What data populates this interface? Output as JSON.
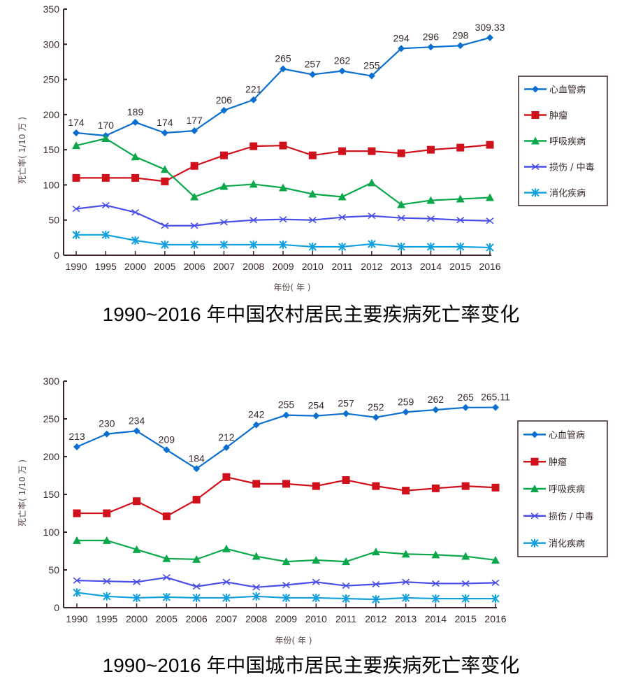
{
  "chart_data": [
    {
      "type": "line",
      "title": "1990~2016 年中国农村居民主要疾病死亡率变化",
      "xlabel": "年份( 年 )",
      "ylabel": "死亡率( 1/10 万 )",
      "ylim": [
        0,
        350
      ],
      "yticks": [
        0,
        50,
        100,
        150,
        200,
        250,
        300,
        350
      ],
      "grid": false,
      "legend_position": "right",
      "categories": [
        "1990",
        "1995",
        "2000",
        "2005",
        "2006",
        "2007",
        "2008",
        "2009",
        "2010",
        "2011",
        "2012",
        "2013",
        "2014",
        "2015",
        "2016"
      ],
      "series": [
        {
          "name": "心血管病",
          "color": "#0a6fd0",
          "marker": "diamond",
          "values": [
            174,
            170,
            189,
            174,
            177,
            206,
            221,
            265,
            257,
            262,
            255,
            294,
            296,
            298,
            309.33
          ],
          "labels": [
            "174",
            "170",
            "189",
            "174",
            "177",
            "206",
            "221",
            "265",
            "257",
            "262",
            "255",
            "294",
            "296",
            "298",
            "309.33"
          ]
        },
        {
          "name": "肿瘤",
          "color": "#d0101a",
          "marker": "square",
          "values": [
            110,
            110,
            110,
            105,
            127,
            142,
            155,
            156,
            142,
            148,
            148,
            145,
            150,
            153,
            157
          ]
        },
        {
          "name": "呼吸疾病",
          "color": "#0aa84a",
          "marker": "triangle",
          "values": [
            156,
            166,
            140,
            122,
            83,
            98,
            101,
            96,
            87,
            83,
            103,
            72,
            78,
            80,
            82
          ]
        },
        {
          "name": "损伤 / 中毒",
          "color": "#4a4ee8",
          "marker": "x",
          "values": [
            66,
            71,
            61,
            42,
            42,
            47,
            50,
            51,
            50,
            54,
            56,
            53,
            52,
            50,
            49
          ]
        },
        {
          "name": "消化疾病",
          "color": "#10a0e0",
          "marker": "asterisk",
          "values": [
            29,
            29,
            21,
            15,
            15,
            15,
            15,
            15,
            12,
            12,
            16,
            12,
            12,
            12,
            11
          ]
        }
      ]
    },
    {
      "type": "line",
      "title": "1990~2016 年中国城市居民主要疾病死亡率变化",
      "xlabel": "年份( 年 )",
      "ylabel": "死亡率( 1/10 万 )",
      "ylim": [
        0,
        300
      ],
      "yticks": [
        0,
        50,
        100,
        150,
        200,
        250,
        300
      ],
      "grid": false,
      "legend_position": "right",
      "categories": [
        "1990",
        "1995",
        "2000",
        "2005",
        "2006",
        "2007",
        "2008",
        "2009",
        "2010",
        "2011",
        "2012",
        "2013",
        "2014",
        "2015",
        "2016"
      ],
      "series": [
        {
          "name": "心血管病",
          "color": "#0a6fd0",
          "marker": "diamond",
          "values": [
            213,
            230,
            234,
            209,
            184,
            212,
            242,
            255,
            254,
            257,
            252,
            259,
            262,
            265,
            265.11
          ],
          "labels": [
            "213",
            "230",
            "234",
            "209",
            "184",
            "212",
            "242",
            "255",
            "254",
            "257",
            "252",
            "259",
            "262",
            "265",
            "265.11"
          ]
        },
        {
          "name": "肿瘤",
          "color": "#d0101a",
          "marker": "square",
          "values": [
            125,
            125,
            141,
            121,
            143,
            173,
            164,
            164,
            161,
            169,
            161,
            155,
            158,
            161,
            159
          ]
        },
        {
          "name": "呼吸疾病",
          "color": "#0aa84a",
          "marker": "triangle",
          "values": [
            89,
            89,
            77,
            65,
            64,
            78,
            68,
            61,
            63,
            61,
            74,
            71,
            70,
            68,
            63
          ]
        },
        {
          "name": "损伤 / 中毒",
          "color": "#4a4ee8",
          "marker": "x",
          "values": [
            36,
            35,
            34,
            40,
            28,
            34,
            27,
            30,
            34,
            29,
            31,
            34,
            32,
            32,
            33
          ]
        },
        {
          "name": "消化疾病",
          "color": "#10a0e0",
          "marker": "asterisk",
          "values": [
            20,
            15,
            13,
            14,
            13,
            13,
            15,
            13,
            13,
            12,
            11,
            13,
            12,
            12,
            12
          ]
        }
      ]
    }
  ],
  "captions": {
    "rural": "1990~2016 年中国农村居民主要疾病死亡率变化",
    "urban": "1990~2016 年中国城市居民主要疾病死亡率变化"
  }
}
